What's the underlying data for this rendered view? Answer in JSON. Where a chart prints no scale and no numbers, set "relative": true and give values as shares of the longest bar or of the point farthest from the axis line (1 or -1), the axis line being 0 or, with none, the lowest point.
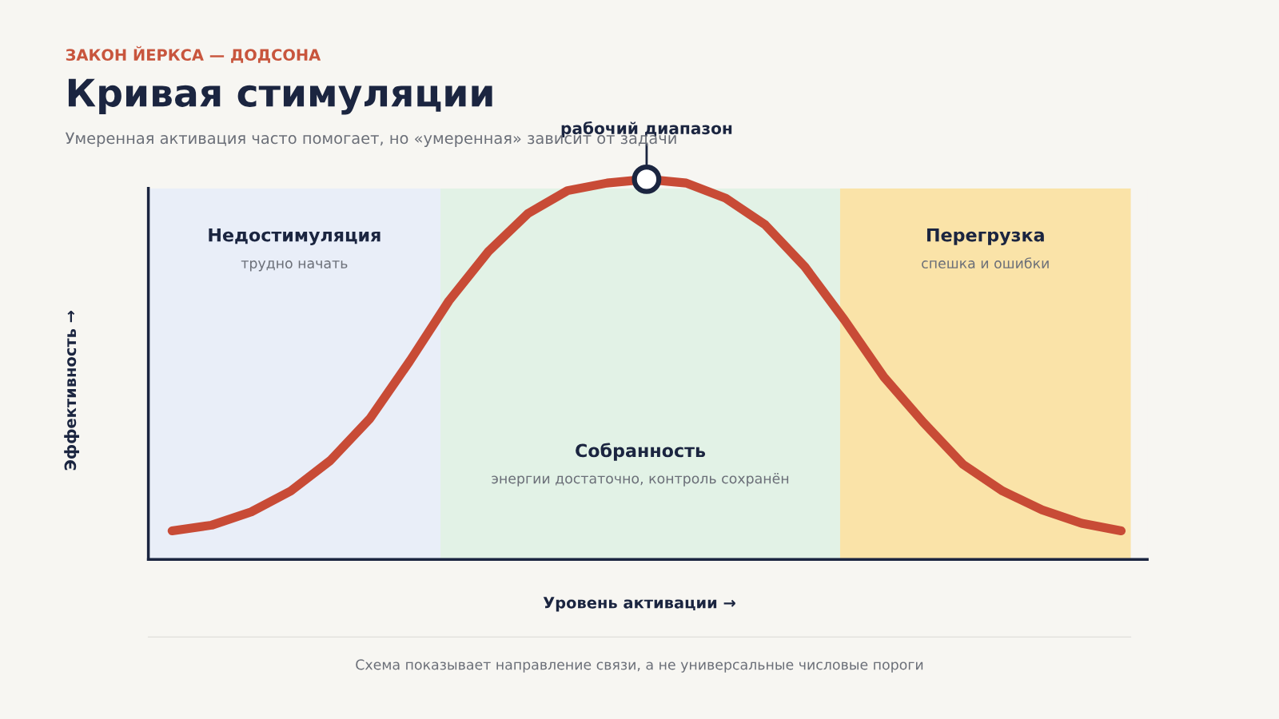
{
  "chart_data": {
    "type": "line",
    "relative": true,
    "title": "Кривая стимуляции",
    "subtitle": "Умеренная активация часто помогает, но «умеренная» зависит от задачи",
    "xlabel": "Уровень активации →",
    "ylabel": "Эффективность →",
    "categories": [
      null,
      null,
      null,
      null,
      null,
      null,
      null,
      null,
      null,
      null,
      null,
      null,
      null,
      null,
      null,
      null,
      null,
      null,
      null,
      null,
      null,
      null,
      null,
      null,
      null
    ],
    "series": [
      {
        "color": "#c84b36",
        "values": [
          0.075,
          0.09,
          0.125,
          0.18,
          0.26,
          0.37,
          0.52,
          0.68,
          0.81,
          0.91,
          0.97,
          0.99,
          1.0,
          0.99,
          0.95,
          0.88,
          0.77,
          0.63,
          0.48,
          0.36,
          0.25,
          0.18,
          0.13,
          0.095,
          0.075
        ]
      }
    ],
    "annotations": [
      "ЗАКОН ЙЕРКСА — ДОДСОНА",
      "Недостимуляция",
      "трудно начать",
      "Собранность",
      "энергии достаточно, контроль сохранён",
      "Перегрузка",
      "спешка и ошибки",
      {
        "text": "рабочий диапазон",
        "y": 1.0
      },
      "Схема показывает направление связи, а не универсальные числовые пороги"
    ],
    "grid": false,
    "legend": false
  }
}
